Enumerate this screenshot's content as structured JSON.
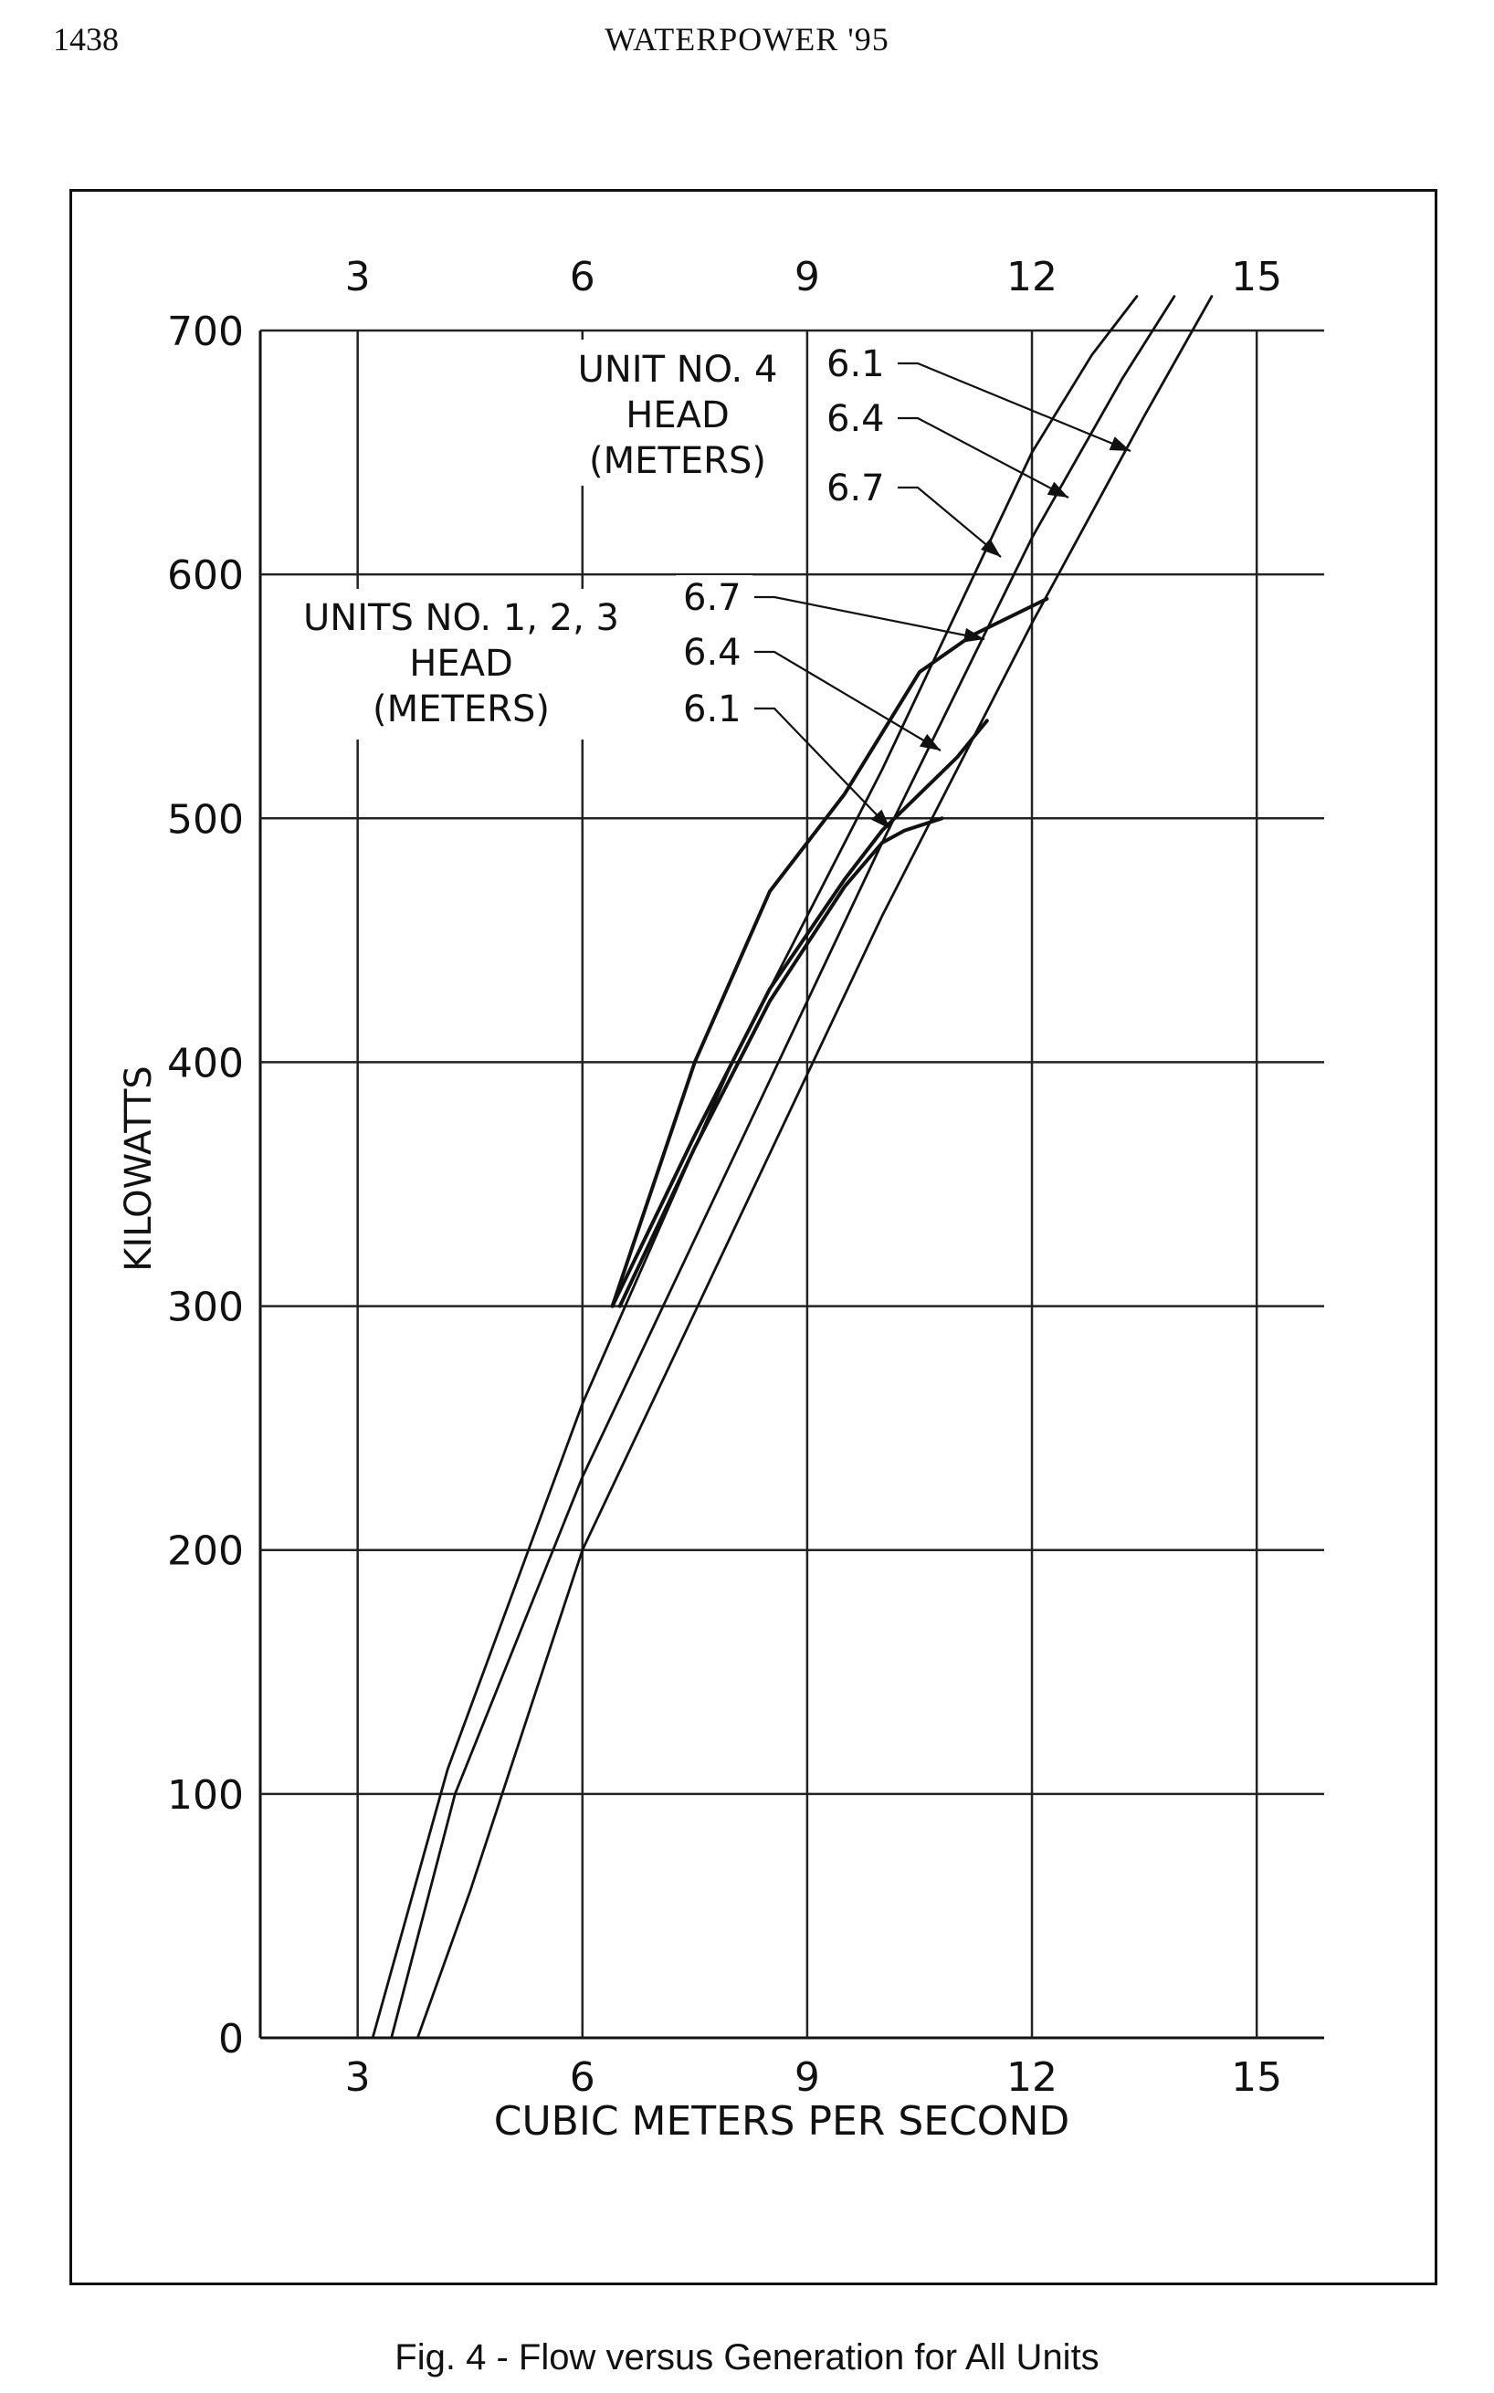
{
  "header": {
    "page_number": "1438",
    "running_head": "WATERPOWER '95"
  },
  "figure": {
    "caption": "Fig. 4 - Flow versus Generation for All Units"
  },
  "chart_data": {
    "type": "line",
    "xlabel": "CUBIC METERS PER SECOND",
    "ylabel": "KILOWATTS",
    "xlim": [
      1.7,
      15.9
    ],
    "ylim": [
      0,
      700
    ],
    "xticks": [
      3,
      6,
      9,
      12,
      15
    ],
    "yticks": [
      0,
      100,
      200,
      300,
      400,
      500,
      600,
      700
    ],
    "grid": true,
    "top_axis_ticks": [
      3,
      6,
      9,
      12,
      15
    ],
    "groups": [
      {
        "label_lines": [
          "UNIT NO. 4",
          "HEAD",
          "(METERS)"
        ]
      },
      {
        "label_lines": [
          "UNITS NO. 1, 2, 3",
          "HEAD",
          "(METERS)"
        ]
      }
    ],
    "series": [
      {
        "name": "6.1",
        "group": 0,
        "x": [
          3.8,
          4.5,
          6.0,
          8.0,
          10.0,
          12.0,
          13.5,
          14.4
        ],
        "y": [
          0,
          60,
          200,
          330,
          460,
          580,
          665,
          714
        ]
      },
      {
        "name": "6.4",
        "group": 0,
        "x": [
          3.45,
          4.3,
          6.0,
          8.0,
          10.0,
          12.0,
          13.2,
          13.9
        ],
        "y": [
          0,
          100,
          230,
          360,
          490,
          615,
          680,
          714
        ]
      },
      {
        "name": "6.7",
        "group": 0,
        "x": [
          3.2,
          4.2,
          6.0,
          8.0,
          10.0,
          12.0,
          12.8,
          13.4
        ],
        "y": [
          0,
          110,
          260,
          400,
          520,
          650,
          690,
          714
        ]
      },
      {
        "name": "6.7",
        "group": 1,
        "x": [
          6.4,
          7.5,
          8.5,
          9.5,
          10.5,
          11.2,
          12.2
        ],
        "y": [
          300,
          400,
          470,
          510,
          560,
          575,
          590
        ]
      },
      {
        "name": "6.4",
        "group": 1,
        "x": [
          6.4,
          7.5,
          8.5,
          9.5,
          10.0,
          10.5,
          11.0,
          11.4
        ],
        "y": [
          300,
          370,
          430,
          475,
          495,
          510,
          525,
          540
        ]
      },
      {
        "name": "6.1",
        "group": 1,
        "x": [
          6.5,
          7.5,
          8.5,
          9.5,
          10.0,
          10.3,
          10.5,
          10.8
        ],
        "y": [
          300,
          365,
          425,
          472,
          490,
          495,
          497,
          500
        ]
      }
    ]
  }
}
